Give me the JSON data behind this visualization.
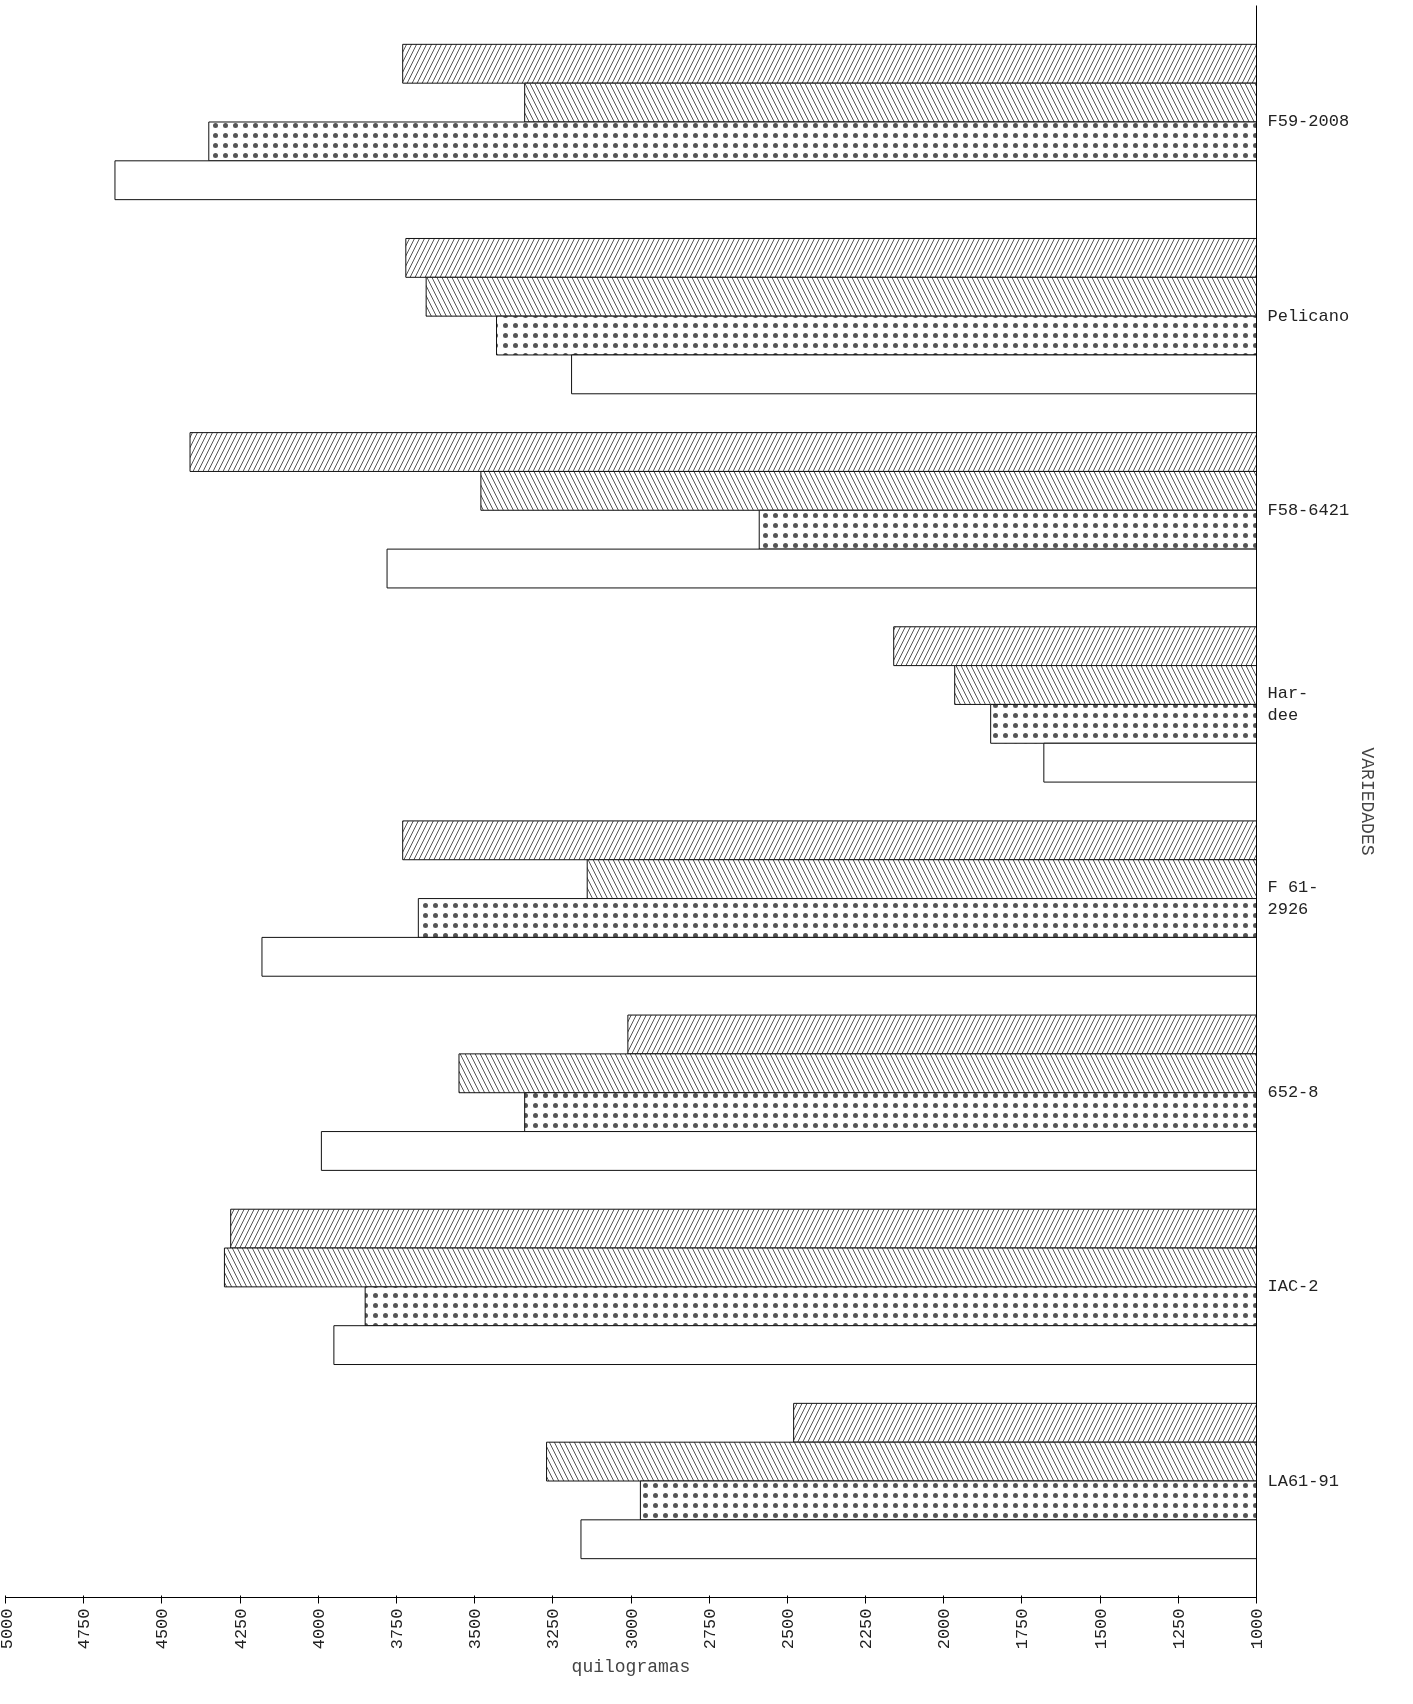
{
  "chart_data": {
    "type": "bar",
    "orientation": "horizontal",
    "xlabel": "quilogramas",
    "ylabel": "VARIEDADES",
    "categories": [
      "F59-2008",
      "Pelicano",
      "F58-6421",
      "Har-\ndee",
      "F 61-\n2926",
      "652-8",
      "IAC-2",
      "LA61-91"
    ],
    "series": [
      {
        "color": "#ffffff",
        "values": [
          3730,
          3720,
          4410,
          2160,
          3730,
          3010,
          4280,
          2480
        ]
      },
      {
        "color": "#ffffff",
        "values": [
          3340,
          3655,
          3480,
          1965,
          3140,
          3550,
          4300,
          3270
        ]
      },
      {
        "color": "#ffffff",
        "values": [
          4350,
          3430,
          2590,
          1850,
          3680,
          3340,
          3850,
          2970
        ]
      },
      {
        "color": "#ffffff",
        "values": [
          4650,
          3190,
          3780,
          1680,
          4180,
          3990,
          3950,
          3160
        ]
      }
    ],
    "xlim": [
      5000,
      1000
    ],
    "xticks": [
      5000,
      4750,
      4500,
      4250,
      4000,
      3750,
      3500,
      3250,
      3000,
      2750,
      2500,
      2250,
      2000,
      1750,
      1500,
      1250,
      1000
    ],
    "grid": false
  }
}
